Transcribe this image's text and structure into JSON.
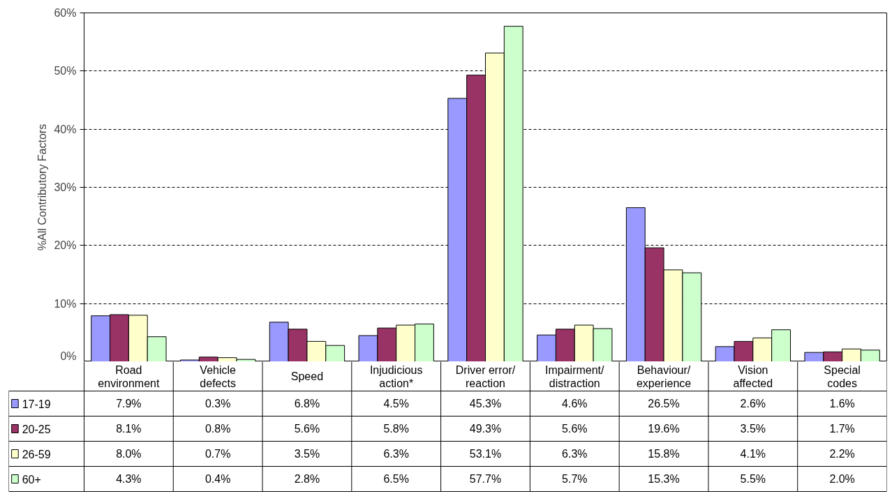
{
  "chart_data": {
    "type": "bar",
    "ylabel": "%All Contributory Factors",
    "categories": [
      "Road environment",
      "Vehicle defects",
      "Speed",
      "Injudicious action*",
      "Driver error/ reaction",
      "Impairment/ distraction",
      "Behaviour/ experience",
      "Vision affected",
      "Special codes"
    ],
    "series": [
      {
        "name": "17-19",
        "color": "#9999ff",
        "values": [
          7.9,
          0.3,
          6.8,
          4.5,
          45.3,
          4.6,
          26.5,
          2.6,
          1.6
        ],
        "value_labels": [
          "7.9%",
          "0.3%",
          "6.8%",
          "4.5%",
          "45.3%",
          "4.6%",
          "26.5%",
          "2.6%",
          "1.6%"
        ]
      },
      {
        "name": "20-25",
        "color": "#993366",
        "values": [
          8.1,
          0.8,
          5.6,
          5.8,
          49.3,
          5.6,
          19.6,
          3.5,
          1.7
        ],
        "value_labels": [
          "8.1%",
          "0.8%",
          "5.6%",
          "5.8%",
          "49.3%",
          "5.6%",
          "19.6%",
          "3.5%",
          "1.7%"
        ]
      },
      {
        "name": "26-59",
        "color": "#ffffcc",
        "values": [
          8.0,
          0.7,
          3.5,
          6.3,
          53.1,
          6.3,
          15.8,
          4.1,
          2.2
        ],
        "value_labels": [
          "8.0%",
          "0.7%",
          "3.5%",
          "6.3%",
          "53.1%",
          "6.3%",
          "15.8%",
          "4.1%",
          "2.2%"
        ]
      },
      {
        "name": "60+",
        "color": "#ccffcc",
        "values": [
          4.3,
          0.4,
          2.8,
          6.5,
          57.7,
          5.7,
          15.3,
          5.5,
          2.0
        ],
        "value_labels": [
          "4.3%",
          "0.4%",
          "2.8%",
          "6.5%",
          "57.7%",
          "5.7%",
          "15.3%",
          "5.5%",
          "2.0%"
        ]
      }
    ],
    "ylim": [
      0,
      60
    ],
    "yticks": [
      {
        "value": 0,
        "label": "0%"
      },
      {
        "value": 10,
        "label": "10%"
      },
      {
        "value": 20,
        "label": "20%"
      },
      {
        "value": 30,
        "label": "30%"
      },
      {
        "value": 40,
        "label": "40%"
      },
      {
        "value": 50,
        "label": "50%"
      },
      {
        "value": 60,
        "label": "60%"
      }
    ],
    "grid": "y",
    "legend": "bottom left",
    "data_labels": true
  }
}
